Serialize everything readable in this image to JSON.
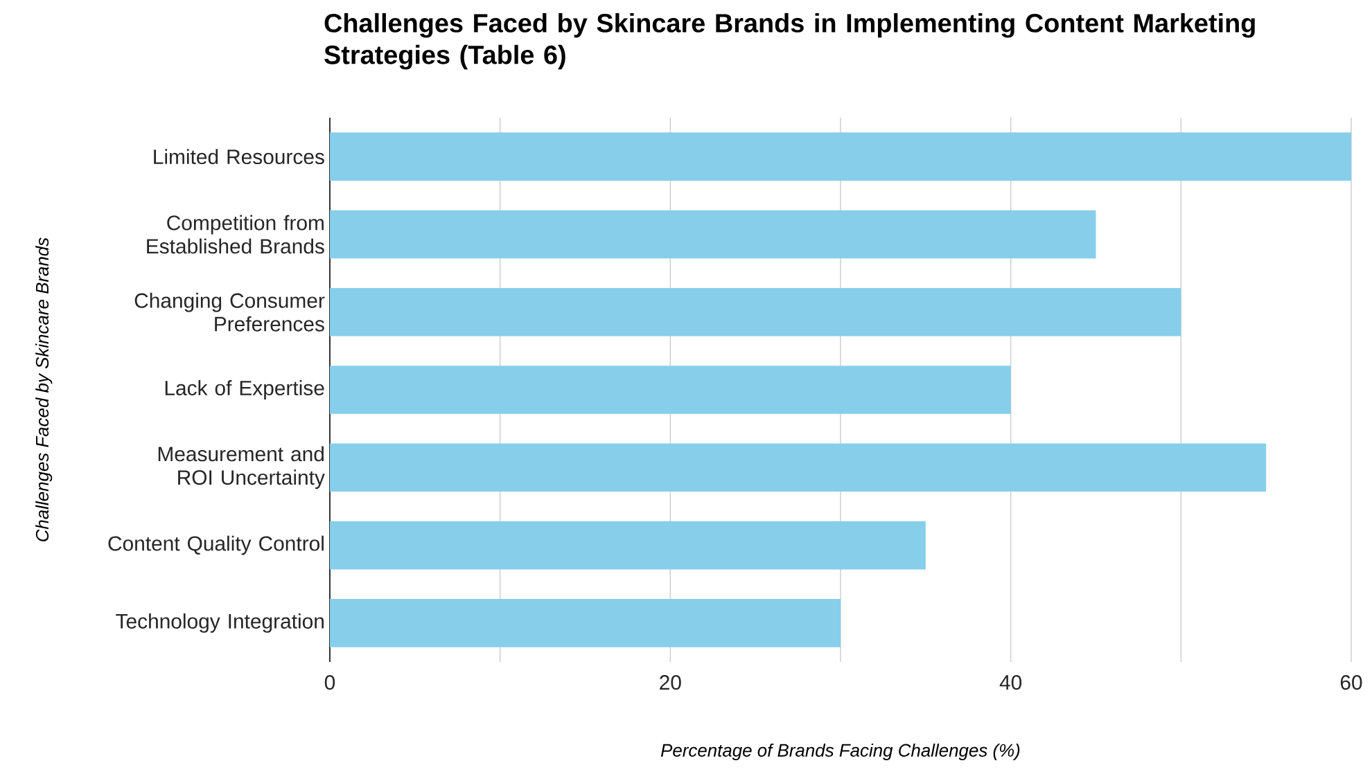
{
  "chart_data": {
    "type": "bar",
    "orientation": "horizontal",
    "title": "Challenges Faced by Skincare Brands in Implementing Content Marketing Strategies (Table 6)",
    "xlabel": "Percentage of Brands Facing Challenges (%)",
    "ylabel": "Challenges Faced by Skincare Brands",
    "categories": [
      "Limited Resources",
      "Competition from Established Brands",
      "Changing Consumer Preferences",
      "Lack of Expertise",
      "Measurement and ROI Uncertainty",
      "Content Quality Control",
      "Technology Integration"
    ],
    "values": [
      60,
      45,
      50,
      40,
      55,
      35,
      30
    ],
    "color": "#87ceeb",
    "xlim": [
      0,
      60
    ],
    "xticks": [
      0,
      {
        "value": 10,
        "label": null
      },
      20,
      {
        "value": 30,
        "label": null
      },
      40,
      {
        "value": 50,
        "label": null
      },
      60
    ],
    "grid": "x"
  }
}
